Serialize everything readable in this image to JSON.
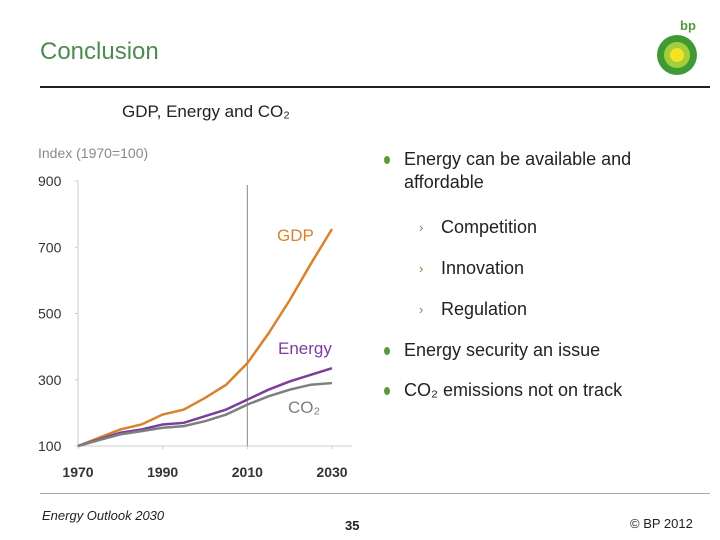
{
  "header": {
    "title": "Conclusion",
    "logo": "bp"
  },
  "chart_data": {
    "type": "line",
    "title": "GDP, Energy and CO₂",
    "y_label": "Index (1970=100)",
    "x": [
      1970,
      1975,
      1980,
      1985,
      1990,
      1995,
      2000,
      2005,
      2010,
      2015,
      2020,
      2025,
      2030
    ],
    "series": [
      {
        "name": "GDP",
        "color": "#d9822b",
        "values": [
          100,
          125,
          150,
          165,
          195,
          210,
          245,
          285,
          350,
          440,
          540,
          650,
          755
        ]
      },
      {
        "name": "Energy",
        "color": "#7a3f9d",
        "values": [
          100,
          120,
          140,
          150,
          165,
          170,
          190,
          210,
          240,
          270,
          295,
          315,
          335
        ]
      },
      {
        "name": "CO₂",
        "color": "#7f7f7f",
        "values": [
          100,
          118,
          135,
          145,
          155,
          160,
          175,
          195,
          225,
          250,
          270,
          285,
          290
        ]
      }
    ],
    "xlim": [
      1970,
      2030
    ],
    "xticks": [
      1970,
      1990,
      2010,
      2030
    ],
    "ylim": [
      100,
      900
    ],
    "yticks": [
      100,
      300,
      500,
      700,
      900
    ],
    "vline": 2010,
    "grid": false
  },
  "bullets": [
    {
      "text": "Energy can be available and affordable",
      "sub": [
        "Competition",
        "Innovation",
        "Regulation"
      ]
    },
    {
      "text": "Energy security an issue"
    },
    {
      "text": "CO₂ emissions not on track"
    }
  ],
  "footer": {
    "left": "Energy Outlook 2030",
    "page": "35",
    "right": "© BP 2012"
  }
}
